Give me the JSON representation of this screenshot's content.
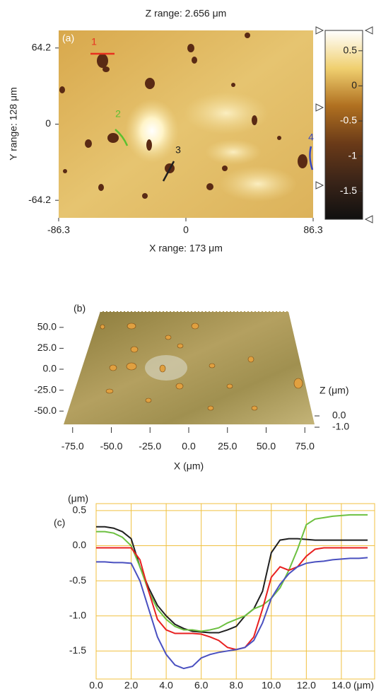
{
  "chart_data": [
    {
      "type": "heatmap",
      "panel": "(a)",
      "title": "Z range: 2.656 μm",
      "ylabel": "Y range: 128 μm",
      "xlabel": "X range: 173 μm",
      "xlim": [
        -86.3,
        86.3
      ],
      "xticks": [
        -86.3,
        0,
        86.3
      ],
      "ylim": [
        -79,
        79
      ],
      "yticks": [
        64.2,
        0,
        -64.2
      ],
      "zlim": [
        -1.9,
        0.79
      ],
      "zticks": [
        0.5,
        0,
        -0.5,
        -1,
        -1.5
      ],
      "profiles": [
        {
          "label": "1",
          "color": "#e8301e"
        },
        {
          "label": "2",
          "color": "#5cc030"
        },
        {
          "label": "3",
          "color": "#202020"
        },
        {
          "label": "4",
          "color": "#3848c0"
        }
      ]
    },
    {
      "type": "surface",
      "panel": "(b)",
      "xlabel": "X (μm)",
      "zlabel": "Z (μm)",
      "xlim": [
        -86.3,
        86.3
      ],
      "ylim": [
        -64.2,
        64.2
      ],
      "xticks": [
        {
          "value": -75,
          "label": "-75.0"
        },
        {
          "value": -50,
          "label": "-50.0"
        },
        {
          "value": -25,
          "label": "-25.0"
        },
        {
          "value": 0,
          "label": "0.0"
        },
        {
          "value": 25,
          "label": "25.0"
        },
        {
          "value": 50,
          "label": "50.0"
        },
        {
          "value": 75,
          "label": "75.0"
        }
      ],
      "yticks": [
        {
          "value": 50,
          "label": "50.0"
        },
        {
          "value": 25,
          "label": "25.0"
        },
        {
          "value": 0,
          "label": "0.0"
        },
        {
          "value": -25,
          "label": "-25.0"
        },
        {
          "value": -50,
          "label": "-50.0"
        }
      ],
      "zticks": [
        {
          "value": 0,
          "label": "0.0"
        },
        {
          "value": -1,
          "label": "-1.0"
        }
      ]
    },
    {
      "type": "line",
      "panel": "(c)",
      "ylabel": "(μm)",
      "xlabel": "(μm)",
      "grid": true,
      "xlim": [
        0,
        15.9
      ],
      "ylim": [
        -1.9,
        0.6
      ],
      "xticks": [
        {
          "value": 0,
          "label": "0.0"
        },
        {
          "value": 2,
          "label": "2.0"
        },
        {
          "value": 4,
          "label": "4.0"
        },
        {
          "value": 6,
          "label": "6.0"
        },
        {
          "value": 8,
          "label": "8.0"
        },
        {
          "value": 10,
          "label": "10.0"
        },
        {
          "value": 12,
          "label": "12.0"
        },
        {
          "value": 14,
          "label": "14.0"
        }
      ],
      "yticks": [
        0.5,
        {
          "value": 0,
          "label": "0.0"
        },
        -0.5,
        {
          "value": -1,
          "label": "-1.0"
        },
        -1.5
      ],
      "x": [
        0,
        0.5,
        1,
        1.5,
        2,
        2.5,
        3,
        3.5,
        4,
        4.5,
        5,
        5.5,
        6,
        6.5,
        7,
        7.5,
        8,
        8.5,
        9,
        9.5,
        10,
        10.5,
        11,
        11.5,
        12,
        12.5,
        13,
        13.5,
        14,
        14.5,
        15,
        15.5
      ],
      "series": [
        {
          "color": "#202020",
          "values": [
            0.27,
            0.27,
            0.25,
            0.2,
            0.1,
            -0.3,
            -0.6,
            -0.85,
            -1.0,
            -1.12,
            -1.18,
            -1.22,
            -1.23,
            -1.24,
            -1.24,
            -1.2,
            -1.15,
            -1.0,
            -0.9,
            -0.65,
            -0.1,
            0.08,
            0.1,
            0.1,
            0.09,
            0.08,
            0.08,
            0.08,
            0.08,
            0.08,
            0.08,
            0.08
          ]
        },
        {
          "color": "#6cc040",
          "values": [
            0.2,
            0.2,
            0.18,
            0.12,
            0.0,
            -0.3,
            -0.65,
            -0.9,
            -1.05,
            -1.15,
            -1.2,
            -1.2,
            -1.22,
            -1.2,
            -1.17,
            -1.1,
            -1.05,
            -1.0,
            -0.9,
            -0.85,
            -0.75,
            -0.6,
            -0.35,
            -0.05,
            0.3,
            0.38,
            0.4,
            0.42,
            0.43,
            0.44,
            0.44,
            0.44
          ]
        },
        {
          "color": "#e82020",
          "values": [
            -0.03,
            -0.03,
            -0.03,
            -0.03,
            -0.03,
            -0.2,
            -0.65,
            -1.05,
            -1.2,
            -1.25,
            -1.25,
            -1.25,
            -1.26,
            -1.3,
            -1.35,
            -1.45,
            -1.48,
            -1.45,
            -1.3,
            -0.9,
            -0.45,
            -0.3,
            -0.35,
            -0.3,
            -0.15,
            -0.05,
            -0.03,
            -0.03,
            -0.03,
            -0.03,
            -0.03,
            -0.03
          ]
        },
        {
          "color": "#4a50c0",
          "values": [
            -0.23,
            -0.23,
            -0.24,
            -0.24,
            -0.25,
            -0.5,
            -0.9,
            -1.3,
            -1.55,
            -1.7,
            -1.75,
            -1.72,
            -1.6,
            -1.55,
            -1.52,
            -1.5,
            -1.48,
            -1.45,
            -1.35,
            -1.1,
            -0.75,
            -0.55,
            -0.4,
            -0.3,
            -0.25,
            -0.23,
            -0.22,
            -0.2,
            -0.19,
            -0.18,
            -0.18,
            -0.17
          ]
        }
      ]
    }
  ]
}
